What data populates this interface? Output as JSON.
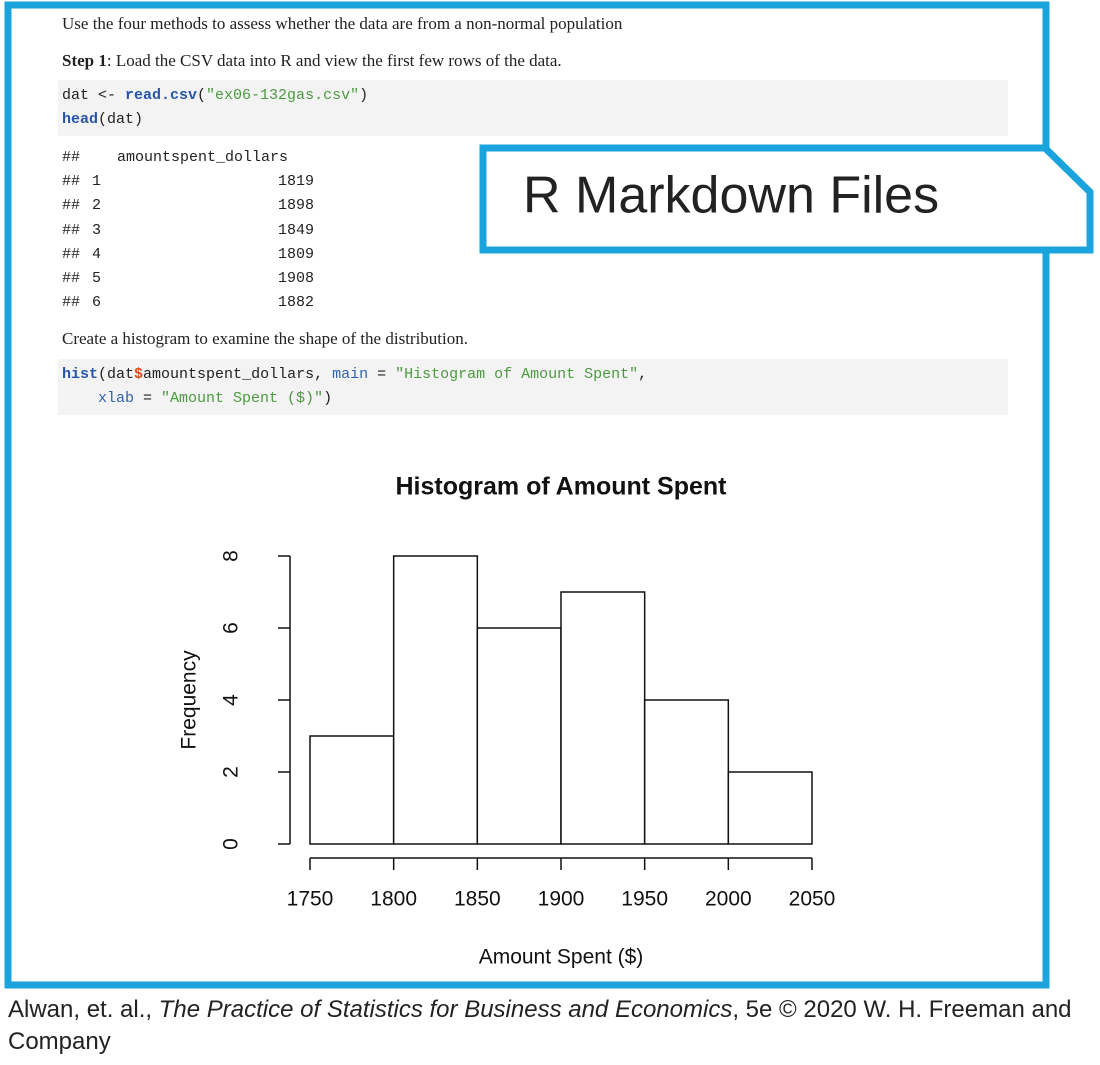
{
  "intro": "Use the four methods to assess whether the data are from a non-normal population",
  "step1": {
    "label": "Step 1",
    "text": ": Load the CSV data into R and view the first few rows of the data."
  },
  "code1": [
    [
      {
        "text": "dat <- ",
        "kind": "plain"
      },
      {
        "text": "read.csv",
        "kind": "fn"
      },
      {
        "text": "(",
        "kind": "plain"
      },
      {
        "text": "\"ex06-132gas.csv\"",
        "kind": "str"
      },
      {
        "text": ")",
        "kind": "plain"
      }
    ],
    [
      {
        "text": "head",
        "kind": "fn"
      },
      {
        "text": "(dat)",
        "kind": "plain"
      }
    ]
  ],
  "output": {
    "prefix": "##",
    "header": "amountspent_dollars",
    "rows": [
      [
        "1",
        "1819"
      ],
      [
        "2",
        "1898"
      ],
      [
        "3",
        "1849"
      ],
      [
        "4",
        "1809"
      ],
      [
        "5",
        "1908"
      ],
      [
        "6",
        "1882"
      ]
    ]
  },
  "step2": "Create a histogram to examine the shape of the distribution.",
  "code2": [
    [
      {
        "text": "hist",
        "kind": "fn"
      },
      {
        "text": "(dat",
        "kind": "plain"
      },
      {
        "text": "$",
        "kind": "op"
      },
      {
        "text": "amountspent_dollars, ",
        "kind": "plain"
      },
      {
        "text": "main",
        "kind": "arg"
      },
      {
        "text": " = ",
        "kind": "plain"
      },
      {
        "text": "\"Histogram of Amount Spent\"",
        "kind": "str"
      },
      {
        "text": ",",
        "kind": "plain"
      }
    ],
    [
      {
        "text": "xlab",
        "kind": "arg"
      },
      {
        "text": " = ",
        "kind": "plain"
      },
      {
        "text": "\"Amount Spent ($)\"",
        "kind": "str"
      },
      {
        "text": ")",
        "kind": "plain"
      }
    ]
  ],
  "callout": "R Markdown Files",
  "chart_data": {
    "type": "histogram",
    "title": "Histogram of Amount Spent",
    "x_label": "Amount Spent ($)",
    "y_label": "Frequency",
    "bins": [
      1750,
      1800,
      1850,
      1900,
      1950,
      2000,
      2050
    ],
    "values": [
      3,
      8,
      6,
      7,
      4,
      2
    ],
    "color": "#ffffff",
    "xlim": [
      1750,
      2050
    ],
    "xticks": [
      1750,
      1800,
      1850,
      1900,
      1950,
      2000,
      2050
    ],
    "ylim": [
      0,
      8
    ],
    "yticks": [
      0,
      2,
      4,
      6,
      8
    ]
  },
  "footer": {
    "prefix": "Alwan, et. al., ",
    "book_title": "The Practice of Statistics for Business and Economics",
    "suffix": ", 5e © 2020 W. H. Freeman and Company"
  }
}
